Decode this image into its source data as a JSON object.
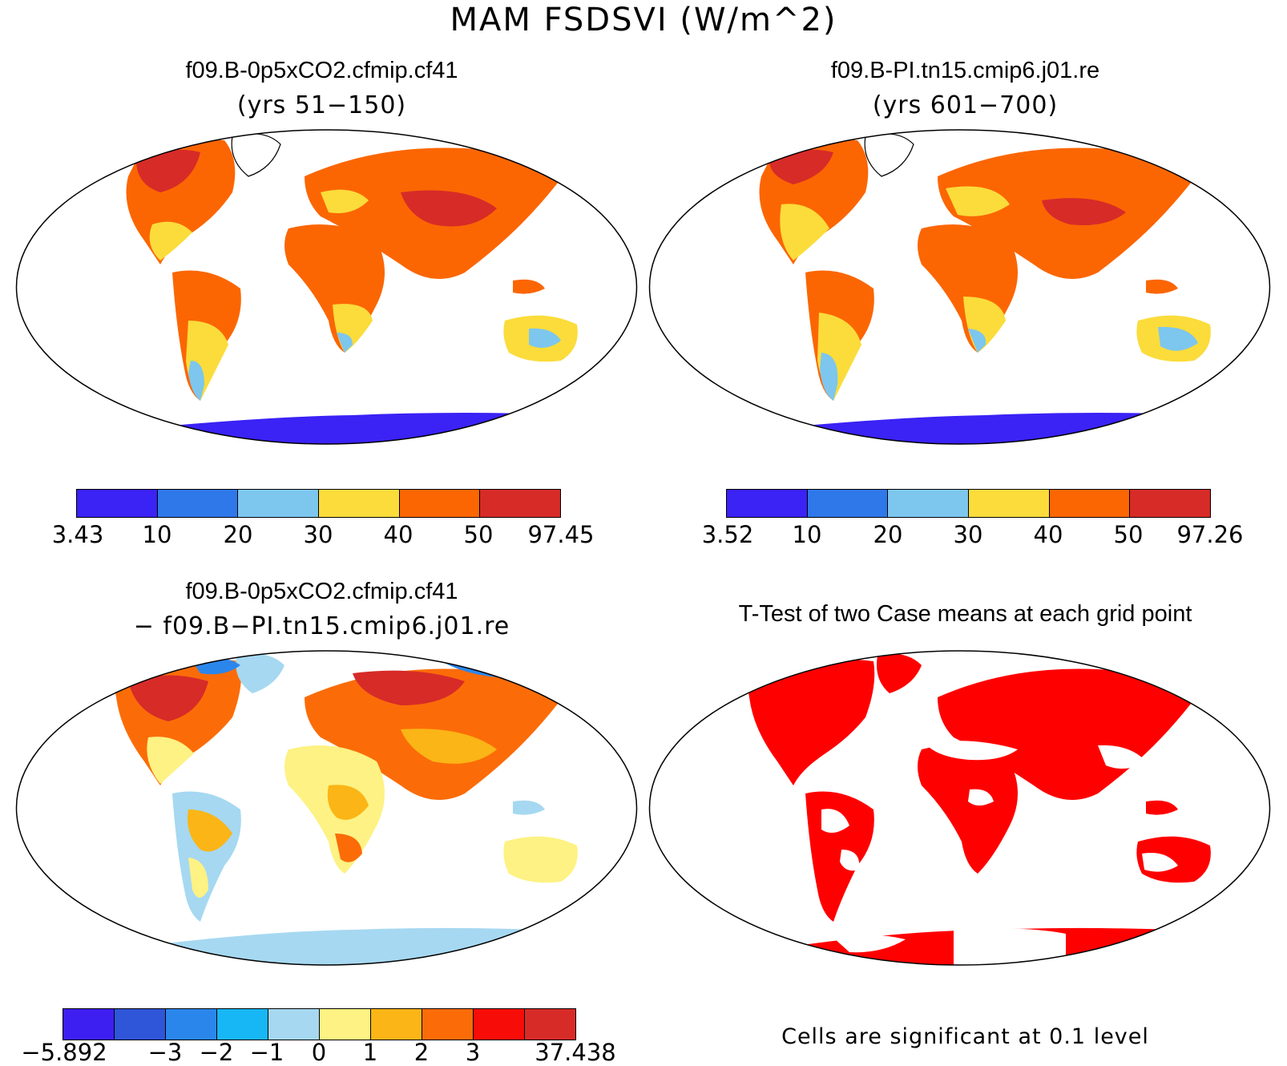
{
  "title": "MAM FSDSVI (W/m^2)",
  "panels": {
    "top_left": {
      "title": "f09.B-0p5xCO2.cfmip.cf41",
      "subtitle": "(yrs 51−150)",
      "colorbar": {
        "labels": [
          "3.43",
          "10",
          "20",
          "30",
          "40",
          "50",
          "97.45"
        ],
        "colors": [
          "#3b22f5",
          "#2f78ea",
          "#7dc6ee",
          "#fbdc3b",
          "#fb6603",
          "#d72b28"
        ]
      }
    },
    "top_right": {
      "title": "f09.B-PI.tn15.cmip6.j01.re",
      "subtitle": "(yrs 601−700)",
      "colorbar": {
        "labels": [
          "3.52",
          "10",
          "20",
          "30",
          "40",
          "50",
          "97.26"
        ],
        "colors": [
          "#3b22f5",
          "#2f78ea",
          "#7dc6ee",
          "#fbdc3b",
          "#fb6603",
          "#d72b28"
        ]
      }
    },
    "bottom_left": {
      "title": "f09.B-0p5xCO2.cfmip.cf41",
      "subtitle": "− f09.B−PI.tn15.cmip6.j01.re",
      "colorbar": {
        "labels": [
          "−5.892",
          "−3",
          "−2",
          "−1",
          "0",
          "1",
          "2",
          "3",
          "37.438"
        ],
        "colors": [
          "#3e1ff2",
          "#2f55d8",
          "#2b86ec",
          "#17b6f4",
          "#a6d8f1",
          "#fdf283",
          "#fbb516",
          "#fb6c08",
          "#f80c08",
          "#d72b28"
        ]
      }
    },
    "bottom_right": {
      "title": "T-Test of two Case means at each grid point",
      "note": "Cells are significant at 0.1 level",
      "significant_color": "#ff0000"
    }
  }
}
